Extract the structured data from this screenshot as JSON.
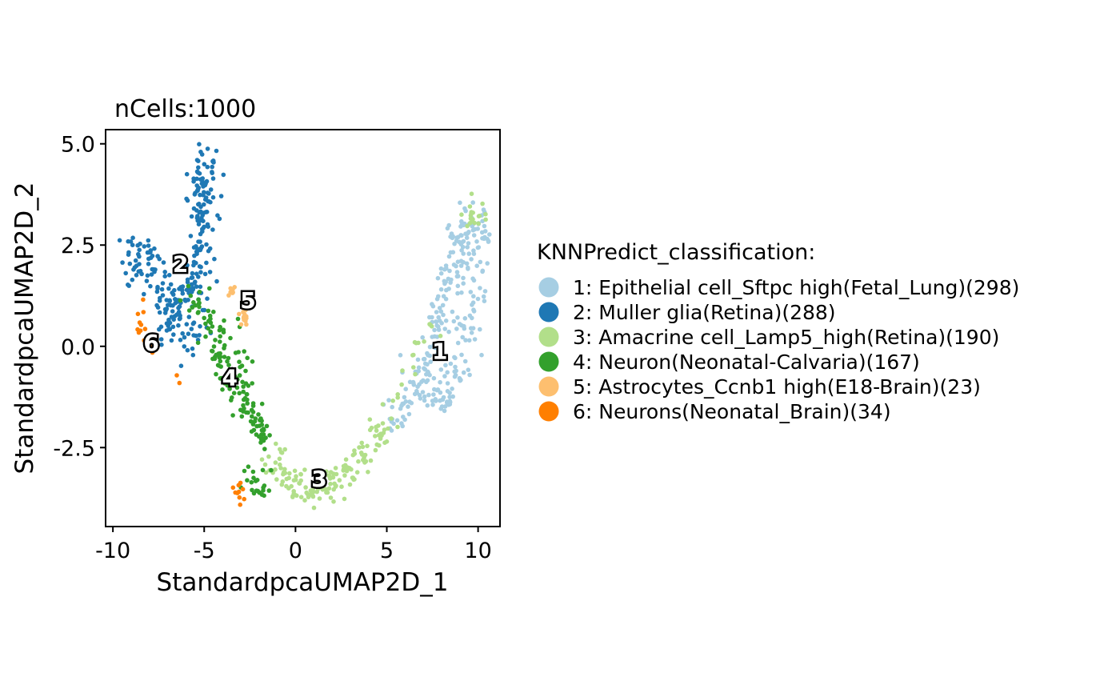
{
  "chart_data": {
    "type": "scatter",
    "title": "nCells:1000",
    "xlabel": "StandardpcaUMAP2D_1",
    "ylabel": "StandardpcaUMAP2D_2",
    "xlim": [
      -10.4,
      11.2
    ],
    "ylim": [
      -4.45,
      5.35
    ],
    "x_ticks": [
      -10,
      -5,
      0,
      5,
      10
    ],
    "x_tick_labels": [
      "-10",
      "-5",
      "0",
      "5",
      "10"
    ],
    "y_ticks": [
      -2.5,
      0,
      2.5,
      5
    ],
    "y_tick_labels": [
      "-2.5",
      "0.0",
      "2.5",
      "5.0"
    ],
    "grid": false,
    "legend": {
      "title": "KNNPredict_classification:",
      "placement": "right"
    },
    "series": [
      {
        "name": "1: Epithelial cell_Sftpc high(Fetal_Lung)(298)",
        "label": "1",
        "color": "#A6CEE3",
        "count": 298,
        "label_pos": [
          7.9,
          -0.15
        ],
        "anchors": [
          [
            5.3,
            -1.8
          ],
          [
            6.3,
            -1.2
          ],
          [
            7.0,
            -0.7
          ],
          [
            7.5,
            -0.1
          ],
          [
            7.8,
            0.7
          ],
          [
            8.3,
            1.5
          ],
          [
            8.7,
            2.3
          ],
          [
            9.3,
            2.8
          ],
          [
            9.8,
            3.2
          ],
          [
            10.0,
            2.6
          ],
          [
            9.9,
            1.6
          ],
          [
            9.6,
            0.6
          ],
          [
            9.1,
            -0.5
          ],
          [
            8.3,
            -1.3
          ],
          [
            7.6,
            -1.2
          ]
        ],
        "spread": [
          0.42,
          0.26
        ]
      },
      {
        "name": "2: Muller glia(Retina)(288)",
        "label": "2",
        "color": "#1F78B4",
        "count": 288,
        "label_pos": [
          -6.3,
          2.0
        ],
        "anchors": [
          [
            -9.2,
            2.1
          ],
          [
            -8.5,
            2.2
          ],
          [
            -7.6,
            1.9
          ],
          [
            -7.2,
            1.0
          ],
          [
            -6.5,
            0.8
          ],
          [
            -5.9,
            1.1
          ],
          [
            -5.5,
            1.6
          ],
          [
            -5.1,
            2.3
          ],
          [
            -5.2,
            3.1
          ],
          [
            -5.1,
            3.8
          ],
          [
            -5.0,
            4.4
          ],
          [
            -5.1,
            4.85
          ],
          [
            -5.4,
            0.1
          ],
          [
            -6.8,
            0.5
          ]
        ],
        "spread": [
          0.4,
          0.3
        ]
      },
      {
        "name": "3: Amacrine cell_Lamp5_high(Retina)(190)",
        "label": "3",
        "color": "#B2DF8A",
        "count": 190,
        "label_pos": [
          1.3,
          -3.3
        ],
        "anchors": [
          [
            -1.3,
            -2.7
          ],
          [
            -0.4,
            -3.3
          ],
          [
            0.3,
            -3.5
          ],
          [
            1.0,
            -3.6
          ],
          [
            1.8,
            -3.5
          ],
          [
            2.7,
            -3.3
          ],
          [
            3.6,
            -2.8
          ],
          [
            4.4,
            -2.3
          ],
          [
            5.1,
            -1.7
          ],
          [
            9.85,
            3.25
          ]
        ],
        "spread": [
          0.32,
          0.17
        ]
      },
      {
        "name": "4: Neuron(Neonatal-Calvaria)(167)",
        "label": "4",
        "color": "#33A02C",
        "count": 167,
        "label_pos": [
          -3.6,
          -0.8
        ],
        "anchors": [
          [
            -5.6,
            1.2
          ],
          [
            -4.7,
            0.7
          ],
          [
            -4.1,
            0.1
          ],
          [
            -4.6,
            -0.4
          ],
          [
            -3.5,
            -0.9
          ],
          [
            -2.8,
            -1.3
          ],
          [
            -2.3,
            -1.8
          ],
          [
            -1.6,
            -2.5
          ],
          [
            -2.8,
            0.2
          ],
          [
            -2.6,
            -3.5
          ],
          [
            -1.6,
            -3.3
          ]
        ],
        "spread": [
          0.3,
          0.22
        ]
      },
      {
        "name": "5: Astrocytes_Ccnb1 high(E18-Brain)(23)",
        "label": "5",
        "color": "#FDBF6F",
        "count": 23,
        "label_pos": [
          -2.6,
          1.1
        ],
        "anchors": [
          [
            -2.8,
            0.8
          ],
          [
            -2.7,
            0.55
          ],
          [
            -3.5,
            1.35
          ]
        ],
        "spread": [
          0.1,
          0.1
        ]
      },
      {
        "name": "6: Neurons(Neonatal_Brain)(34)",
        "label": "6",
        "color": "#FF7F00",
        "count": 34,
        "label_pos": [
          -7.9,
          0.05
        ],
        "anchors": [
          [
            -8.6,
            0.6
          ],
          [
            -7.9,
            0.2
          ],
          [
            -7.7,
            -0.1
          ],
          [
            -8.8,
            1.0
          ],
          [
            -3.1,
            -3.45
          ],
          [
            -3.0,
            -3.65
          ]
        ],
        "spread": [
          0.17,
          0.12
        ]
      }
    ]
  }
}
